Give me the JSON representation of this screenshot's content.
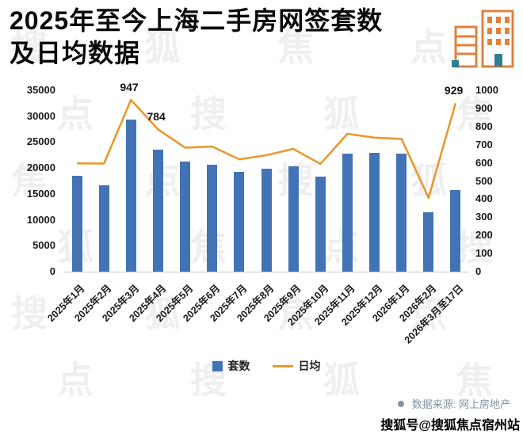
{
  "title": {
    "line1": "2025年至今上海二手房网签套数",
    "line2": "及日均数据"
  },
  "chart_data": {
    "type": "bar",
    "title": "2025年至今上海二手房网签套数及日均数据",
    "xlabel": "",
    "ylabel": "",
    "categories": [
      "2025年1月",
      "2025年2月",
      "2025年3月",
      "2025年4月",
      "2025年5月",
      "2025年6月",
      "2025年7月",
      "2025年8月",
      "2025年9月",
      "2025年10月",
      "2025年11月",
      "2025年12月",
      "2026年1月",
      "2026年2月",
      "2026年3月至17日"
    ],
    "series": [
      {
        "name": "套数",
        "type": "bar",
        "axis": "left",
        "color": "#4273b4",
        "values": [
          18500,
          16700,
          29400,
          23500,
          21200,
          20700,
          19200,
          19900,
          20300,
          18400,
          22800,
          22900,
          22700,
          11400,
          15800
        ]
      },
      {
        "name": "日均",
        "type": "line",
        "axis": "right",
        "color": "#e8992f",
        "values": [
          597,
          596,
          947,
          784,
          684,
          690,
          619,
          642,
          677,
          594,
          760,
          739,
          732,
          407,
          929
        ]
      }
    ],
    "left_axis": {
      "min": 0,
      "max": 35000,
      "ticks": [
        0,
        5000,
        10000,
        15000,
        20000,
        25000,
        30000,
        35000
      ]
    },
    "right_axis": {
      "min": 0,
      "max": 1000,
      "ticks": [
        0,
        100,
        200,
        300,
        400,
        500,
        600,
        700,
        800,
        900,
        1000
      ]
    },
    "point_labels": [
      {
        "index": 2,
        "text": "947"
      },
      {
        "index": 3,
        "text": "784"
      },
      {
        "index": 14,
        "text": "929"
      }
    ],
    "grid": false,
    "legend_position": "bottom"
  },
  "footer": {
    "source": "数据来源: 网上房地产",
    "watermark_account": "搜狐号@搜狐焦点宿州站"
  },
  "watermark": {
    "text": "搜狐焦点"
  }
}
